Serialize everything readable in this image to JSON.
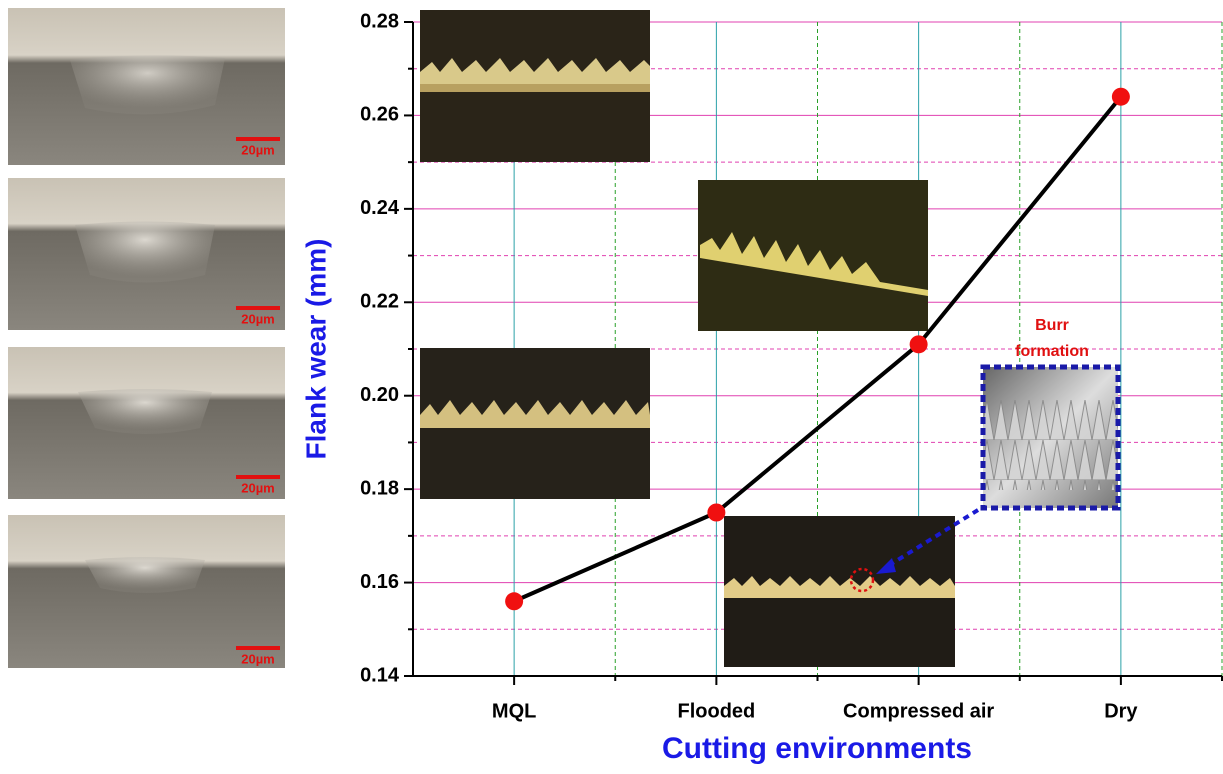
{
  "chart_data": {
    "type": "line",
    "y_label": "Flank wear (mm)",
    "x_label": "Cutting environments",
    "categories": [
      "MQL",
      "Flooded",
      "Compressed air",
      "Dry"
    ],
    "values": [
      0.156,
      0.175,
      0.211,
      0.264
    ],
    "color": "#000000",
    "marker_color": "#f01010",
    "ylim": [
      0.14,
      0.28
    ],
    "yticks": [
      {
        "value": 0.14,
        "label": "0.14"
      },
      {
        "value": 0.16,
        "label": "0.16"
      },
      {
        "value": 0.18,
        "label": "0.18"
      },
      {
        "value": 0.2,
        "label": "0.20"
      },
      {
        "value": 0.22,
        "label": "0.22"
      },
      {
        "value": 0.24,
        "label": "0.24"
      },
      {
        "value": 0.26,
        "label": "0.26"
      },
      {
        "value": 0.28,
        "label": "0.28"
      }
    ],
    "minor_yticks": [
      0.15,
      0.17,
      0.19,
      0.21,
      0.23,
      0.25,
      0.27
    ],
    "grid": true,
    "annotation": [
      "Burr",
      "formation"
    ],
    "scale_bar_labels": [
      "20µm",
      "20µm",
      "20µm",
      "20µm"
    ]
  }
}
